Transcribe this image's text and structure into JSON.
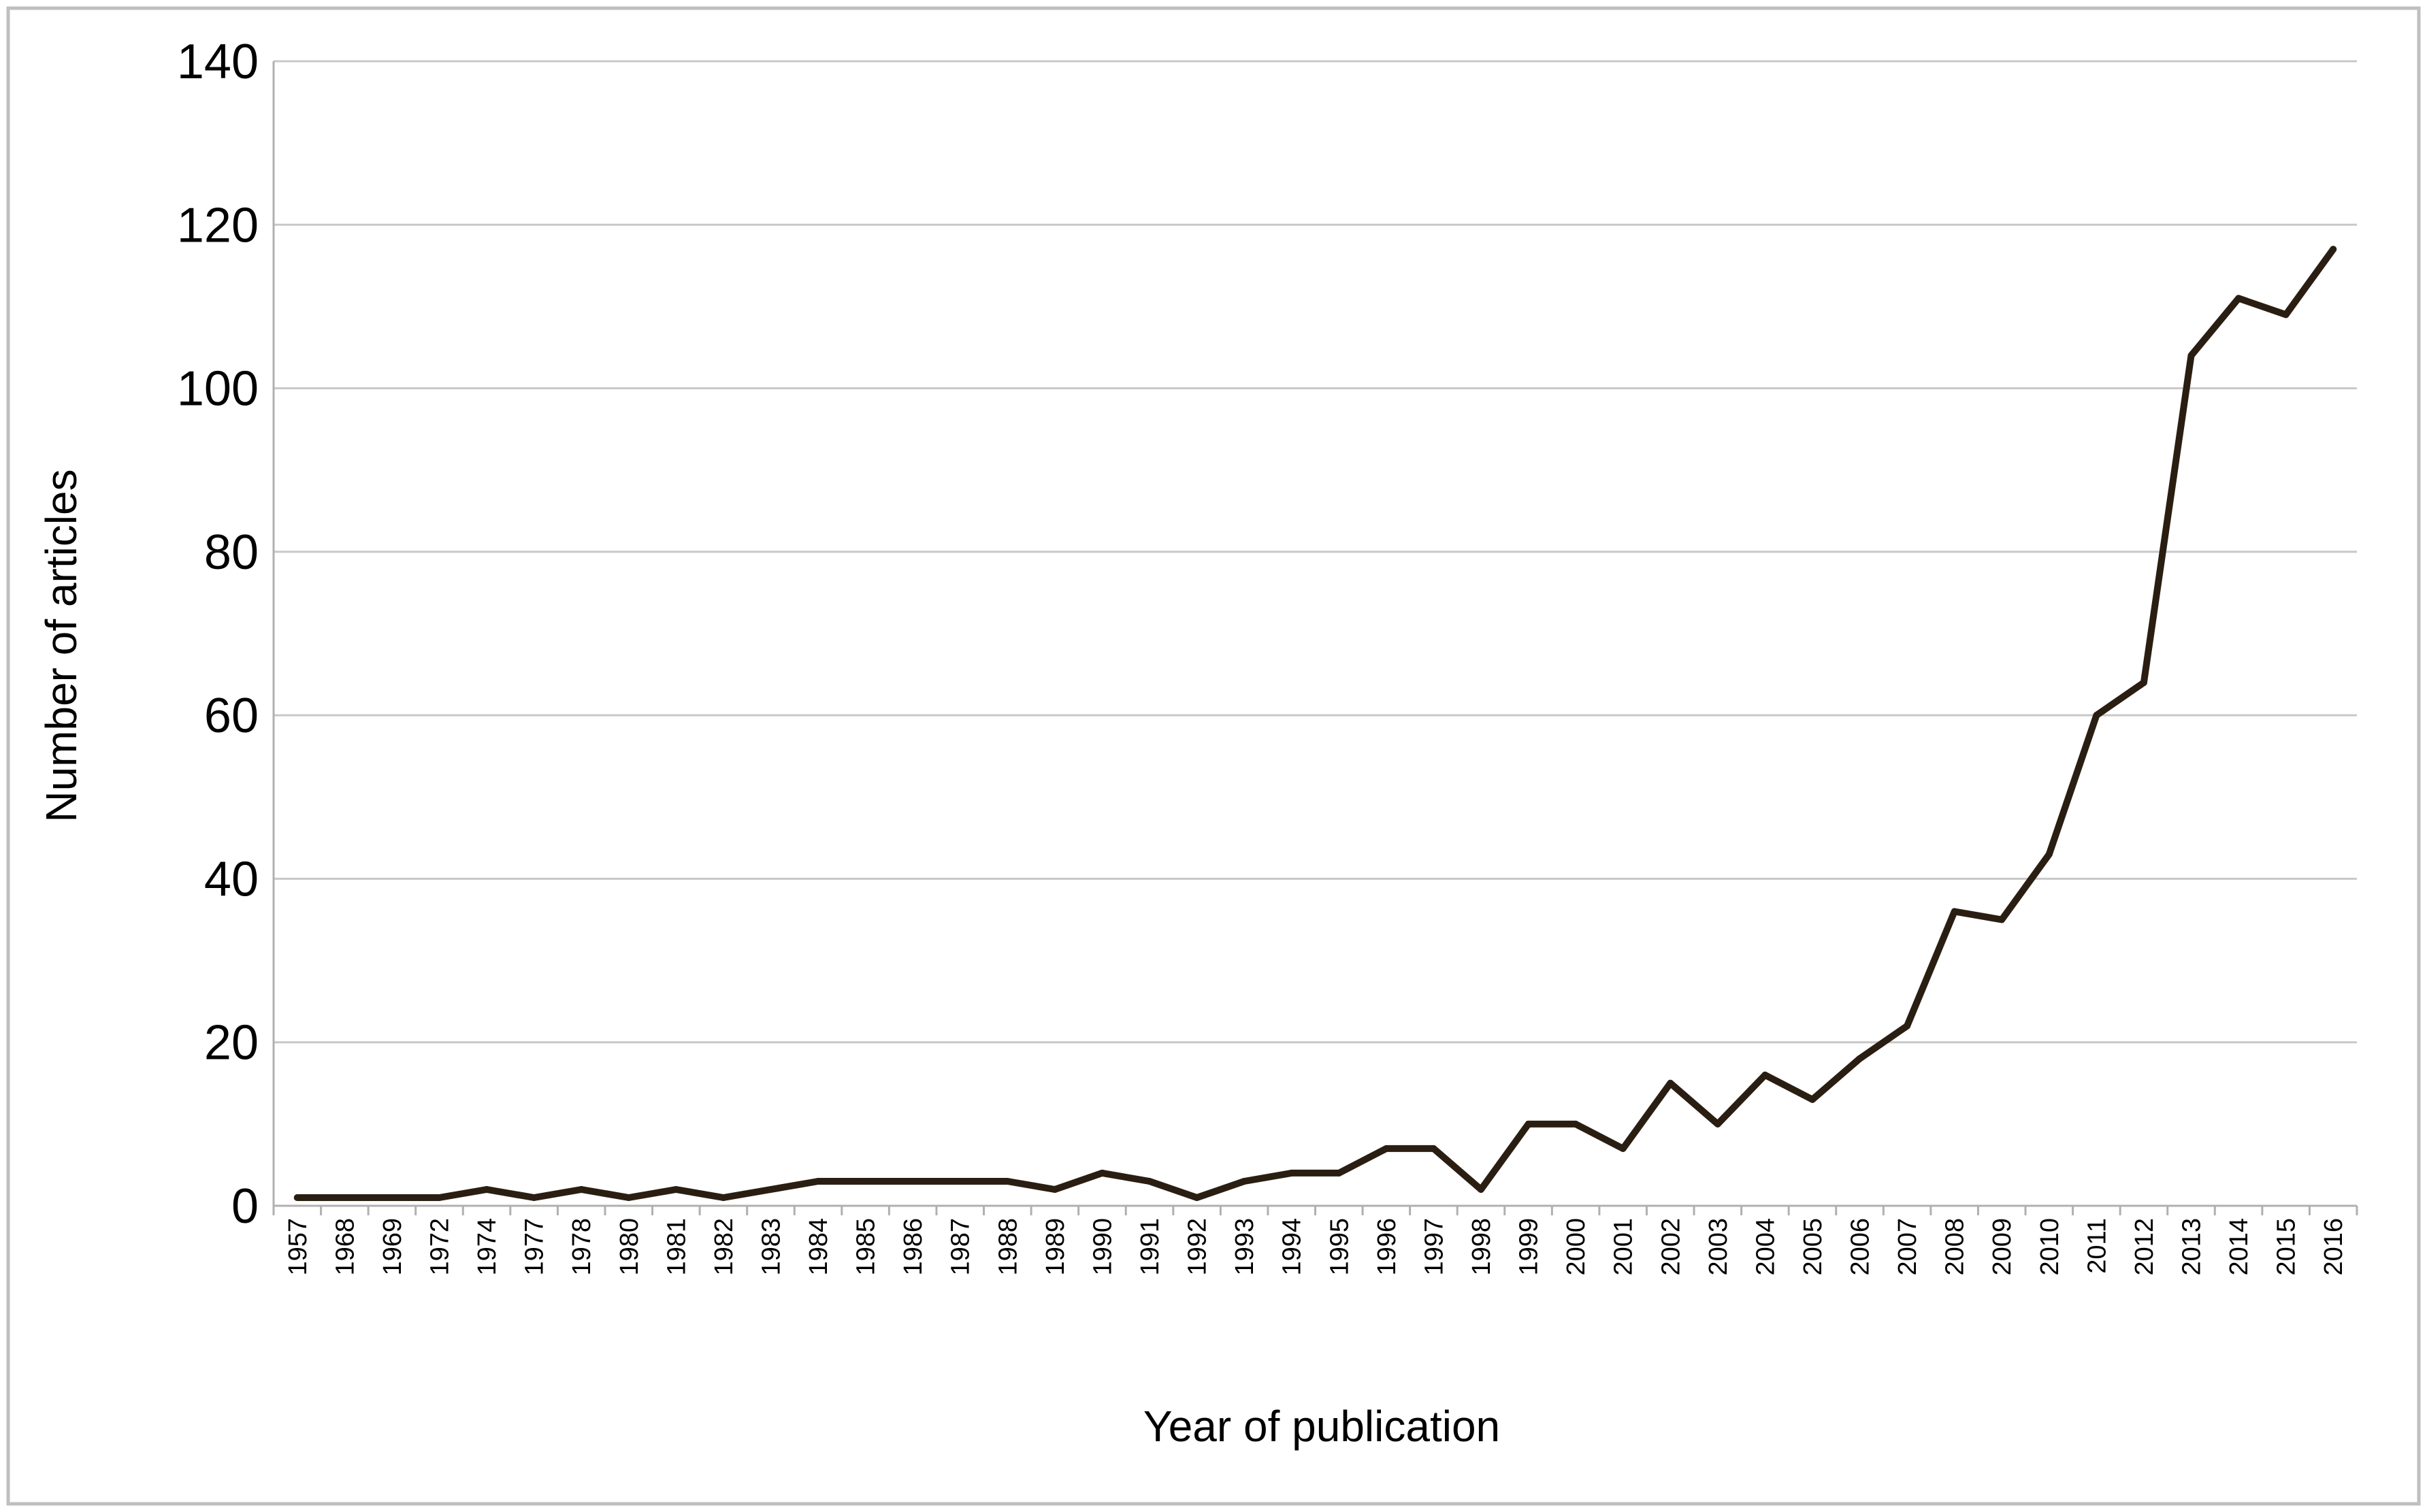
{
  "chart_data": {
    "type": "line",
    "title": "",
    "xlabel": "Year of publication",
    "ylabel": "Number of articles",
    "ylim": [
      0,
      140
    ],
    "yticks": [
      0,
      20,
      40,
      60,
      80,
      100,
      120,
      140
    ],
    "grid": true,
    "legend": "none",
    "line_color": "#2a1e12",
    "categories": [
      "1957",
      "1968",
      "1969",
      "1972",
      "1974",
      "1977",
      "1978",
      "1980",
      "1981",
      "1982",
      "1983",
      "1984",
      "1985",
      "1986",
      "1987",
      "1988",
      "1989",
      "1990",
      "1991",
      "1992",
      "1993",
      "1994",
      "1995",
      "1996",
      "1997",
      "1998",
      "1999",
      "2000",
      "2001",
      "2002",
      "2003",
      "2004",
      "2005",
      "2006",
      "2007",
      "2008",
      "2009",
      "2010",
      "2011",
      "2012",
      "2013",
      "2014",
      "2015",
      "2016"
    ],
    "series": [
      {
        "values": [
          1,
          1,
          1,
          1,
          2,
          1,
          2,
          1,
          2,
          1,
          2,
          3,
          3,
          3,
          3,
          3,
          2,
          4,
          3,
          1,
          3,
          4,
          4,
          7,
          7,
          2,
          10,
          10,
          7,
          15,
          10,
          16,
          13,
          18,
          22,
          36,
          35,
          43,
          60,
          64,
          104,
          111,
          109,
          117
        ]
      }
    ]
  }
}
